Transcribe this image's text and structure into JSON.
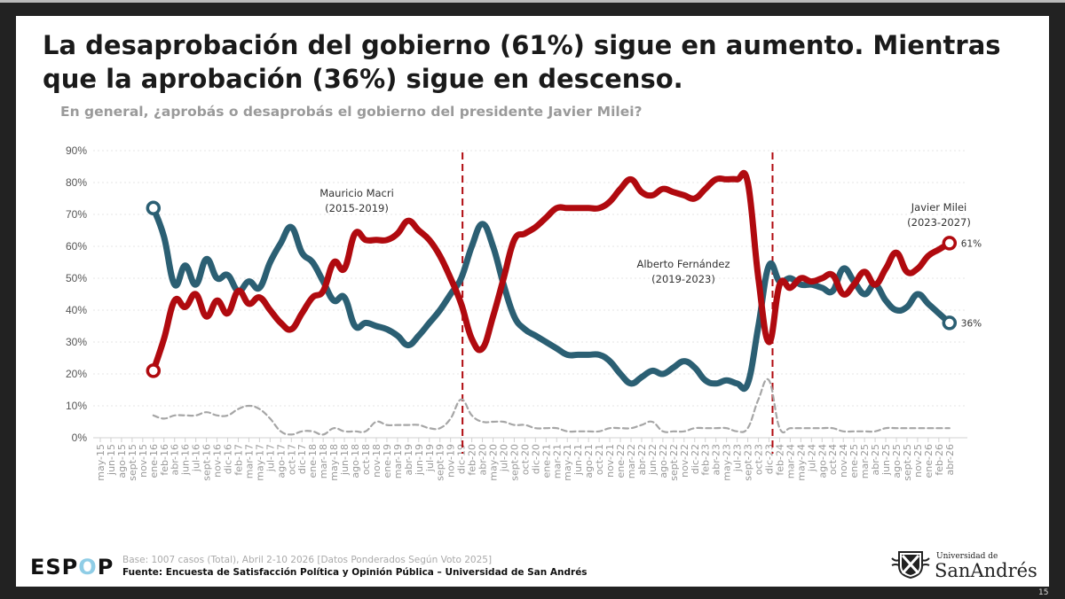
{
  "title": "La desaprobación del gobierno (61%) sigue en aumento. Mientras que la aprobación (36%) sigue en descenso.",
  "subtitle": "En general, ¿aprobás o desaprobás el gobierno del presidente Javier Milei?",
  "footer": {
    "logo": "ESPOP",
    "base": "Base: 1007 casos (Total), Abril 2-10 2026 [Datos Ponderados Según Voto 2025]",
    "source": "Fuente: Encuesta de Satisfacción Política y Opinión Pública – Universidad de San Andrés",
    "university_logo_small": "Universidad de",
    "university_logo_big": "SanAndrés",
    "page_number": "15"
  },
  "chart_data": {
    "type": "line",
    "title": "",
    "xlabel": "",
    "ylabel": "",
    "ylim": [
      0,
      90
    ],
    "yticks": [
      "0%",
      "10%",
      "20%",
      "30%",
      "40%",
      "50%",
      "60%",
      "70%",
      "80%",
      "90%"
    ],
    "grid": true,
    "legend": "none",
    "categories": [
      "may-15",
      "jun-15",
      "ago-15",
      "sept-15",
      "nov-15",
      "ene-16",
      "feb-16",
      "abr-16",
      "jun-16",
      "jul-16",
      "sept-16",
      "nov-16",
      "dic-16",
      "feb-17",
      "mar-17",
      "may-17",
      "jul-17",
      "ago-17",
      "oct-17",
      "dic-17",
      "ene-18",
      "mar-18",
      "may-18",
      "jun-18",
      "ago-18",
      "oct-18",
      "nov-18",
      "ene-19",
      "mar-19",
      "abr-19",
      "jun-19",
      "jul-19",
      "sept-19",
      "nov-19",
      "dic-19",
      "feb-20",
      "abr-20",
      "may-20",
      "jul-20",
      "sept-20",
      "oct-20",
      "dic-20",
      "ene-21",
      "mar-21",
      "may-21",
      "jun-21",
      "ago-21",
      "oct-21",
      "nov-21",
      "ene-22",
      "mar-22",
      "abr-22",
      "jun-22",
      "ago-22",
      "sept-22",
      "nov-22",
      "dic-22",
      "feb-23",
      "abr-23",
      "may-23",
      "jul-23",
      "sept-23",
      "oct-23",
      "dic-23",
      "feb-24",
      "mar-24",
      "may-24",
      "jul-24",
      "ago-24",
      "oct-24",
      "nov-24",
      "ene-25",
      "mar-25",
      "abr-25",
      "jun-25",
      "ago-25",
      "sept-25",
      "nov-25",
      "ene-26",
      "feb-26",
      "abr-26"
    ],
    "series": [
      {
        "color": "#b00a0f",
        "style": "solid",
        "end_label": "61%",
        "values": [
          null,
          null,
          null,
          null,
          null,
          21,
          31,
          43,
          41,
          45,
          38,
          43,
          39,
          46,
          42,
          44,
          40,
          36,
          34,
          39,
          44,
          46,
          55,
          53,
          64,
          62,
          62,
          62,
          64,
          68,
          65,
          62,
          57,
          50,
          42,
          31,
          28,
          38,
          50,
          62,
          64,
          66,
          69,
          72,
          72,
          72,
          72,
          72,
          74,
          78,
          81,
          77,
          76,
          78,
          77,
          76,
          75,
          78,
          81,
          81,
          81,
          80,
          50,
          30,
          48,
          47,
          50,
          49,
          50,
          51,
          45,
          48,
          52,
          48,
          53,
          58,
          52,
          53,
          57,
          59,
          61
        ]
      },
      {
        "color": "#2b5f73",
        "style": "solid",
        "end_label": "36%",
        "values": [
          null,
          null,
          null,
          null,
          null,
          72,
          63,
          48,
          54,
          48,
          56,
          50,
          51,
          46,
          49,
          47,
          55,
          61,
          66,
          58,
          55,
          49,
          43,
          44,
          35,
          36,
          35,
          34,
          32,
          29,
          32,
          36,
          40,
          45,
          50,
          60,
          67,
          60,
          48,
          38,
          34,
          32,
          30,
          28,
          26,
          26,
          26,
          26,
          24,
          20,
          17,
          19,
          21,
          20,
          22,
          24,
          22,
          18,
          17,
          18,
          17,
          17,
          35,
          54,
          49,
          50,
          48,
          48,
          47,
          46,
          53,
          49,
          45,
          48,
          43,
          40,
          41,
          45,
          42,
          39,
          36
        ]
      },
      {
        "color": "#a6a6a6",
        "style": "dashed",
        "values": [
          null,
          null,
          null,
          null,
          null,
          7,
          6,
          7,
          7,
          7,
          8,
          7,
          7,
          9,
          10,
          9,
          6,
          2,
          1,
          2,
          2,
          1,
          3,
          2,
          2,
          2,
          5,
          4,
          4,
          4,
          4,
          3,
          3,
          6,
          12,
          7,
          5,
          5,
          5,
          4,
          4,
          3,
          3,
          3,
          2,
          2,
          2,
          2,
          3,
          3,
          3,
          4,
          5,
          2,
          2,
          2,
          3,
          3,
          3,
          3,
          2,
          3,
          12,
          18,
          3,
          3,
          3,
          3,
          3,
          3,
          2,
          2,
          2,
          2,
          3,
          3,
          3,
          3,
          3,
          3,
          3
        ]
      }
    ],
    "period_dividers": [
      {
        "after": "dic-19",
        "color": "#b00a0f"
      },
      {
        "after": "dic-23",
        "color": "#b00a0f"
      }
    ],
    "annotations": [
      {
        "name": "Mauricio Macri",
        "period": "(2015-2019)"
      },
      {
        "name": "Alberto Fernández",
        "period": "(2019-2023)"
      },
      {
        "name": "Javier Milei",
        "period": "(2023-2027)"
      }
    ]
  }
}
